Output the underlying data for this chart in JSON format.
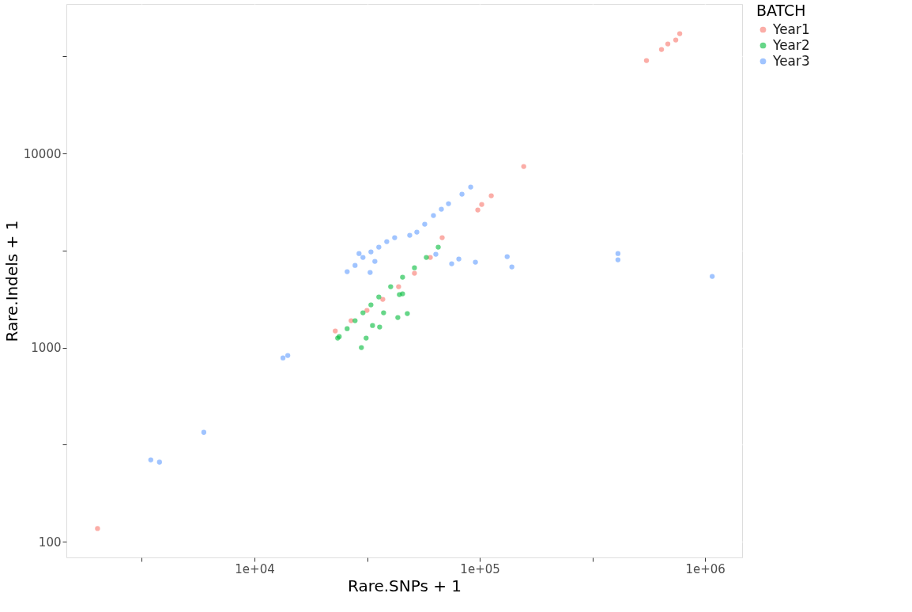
{
  "chart_data": {
    "type": "scatter",
    "xlabel": "Rare.SNPs + 1",
    "ylabel": "Rare.Indels + 1",
    "legend_title": "BATCH",
    "log": "xy",
    "grid": true,
    "legend": "right",
    "marker": "circle",
    "xlim": [
      1462,
      1460000
    ],
    "ylim": [
      83,
      58900
    ],
    "xticks": [
      {
        "value": 3162,
        "label": null
      },
      {
        "value": 10000,
        "label": "1e+04"
      },
      {
        "value": 31623,
        "label": null
      },
      {
        "value": 100000,
        "label": "1e+05"
      },
      {
        "value": 316228,
        "label": null
      },
      {
        "value": 1000000,
        "label": "1e+06"
      }
    ],
    "yticks": [
      100,
      {
        "value": 316,
        "label": null
      },
      1000,
      {
        "value": 3162,
        "label": null
      },
      10000,
      {
        "value": 31623,
        "label": null
      }
    ],
    "series": [
      {
        "name": "Year1",
        "color": "#f8766d",
        "x": [
          2010,
          22830,
          26840,
          31560,
          37100,
          43620,
          51290,
          60300,
          68080,
          97990,
          102000,
          112450,
          156700,
          549500,
          640700,
          683500,
          741300,
          772000
        ],
        "values": [
          117,
          1218,
          1376,
          1554,
          1772,
          2059,
          2415,
          2913,
          3683,
          5115,
          5460,
          6055,
          8567,
          30110,
          34320,
          36660,
          38410,
          41410
        ]
      },
      {
        "name": "Year2",
        "color": "#00ba38",
        "x": [
          23770,
          25780,
          27950,
          30300,
          32870,
          35630,
          40220,
          45420,
          51290,
          57910,
          65400,
          29820,
          31300,
          35930,
          33410,
          43270,
          47690,
          37410,
          43970,
          45420,
          23400
        ],
        "values": [
          1140,
          1252,
          1376,
          1511,
          1660,
          1823,
          2059,
          2304,
          2578,
          2913,
          3291,
          1000,
          1119,
          1276,
          1300,
          1428,
          1497,
          1511,
          1875,
          1892,
          1119
        ]
      },
      {
        "name": "Year3",
        "color": "#619cff",
        "x": [
          3464,
          3786,
          5957,
          13380,
          14050,
          25780,
          27950,
          30300,
          32870,
          35630,
          38640,
          41890,
          29110,
          34220,
          32600,
          48870,
          52550,
          56960,
          62280,
          67530,
          72640,
          83360,
          91130,
          63800,
          75040,
          80720,
          95650,
          132300,
          138800,
          410500,
          410500,
          1076000
        ],
        "values": [
          264,
          257,
          366,
          885,
          911,
          2460,
          2651,
          2913,
          3111,
          3291,
          3515,
          3683,
          3052,
          2780,
          2438,
          3788,
          3933,
          4320,
          4788,
          5161,
          5511,
          6169,
          6713,
          3024,
          2703,
          2859,
          2754,
          2941,
          2604,
          3052,
          2832,
          2326
        ]
      }
    ]
  }
}
